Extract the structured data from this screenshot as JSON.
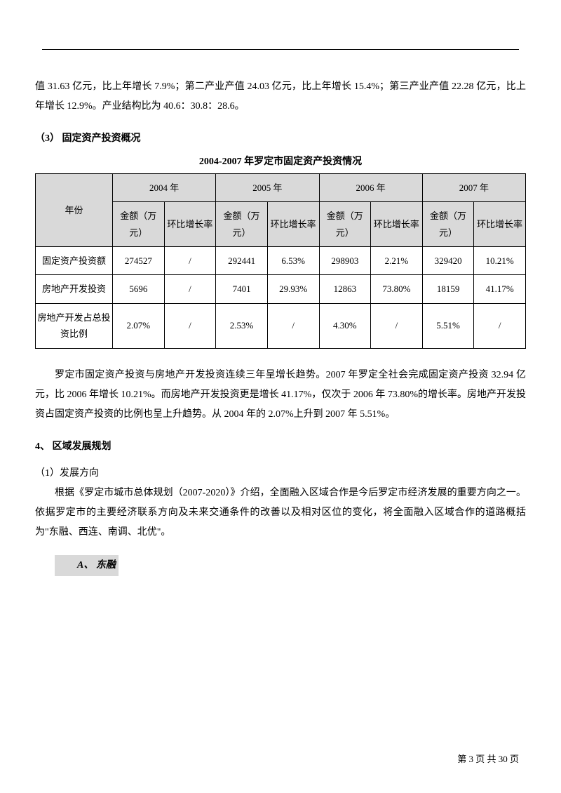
{
  "intro_para": "值 31.63 亿元，比上年增长 7.9%；第二产业产值 24.03 亿元，比上年增长 15.4%；第三产业产值 22.28 亿元，比上年增长 12.9%。产业结构比为 40.6：30.8：28.6。",
  "section3_head": "（3） 固定资产投资概况",
  "table_title": "2004-2007 年罗定市固定资产投资情况",
  "table": {
    "row_head": "年份",
    "years": [
      "2004 年",
      "2005 年",
      "2006 年",
      "2007 年"
    ],
    "sub_amount": "金额（万元）",
    "sub_rate": "环比增长率",
    "rows": [
      {
        "label": "固定资产投资额",
        "cells": [
          "274527",
          "/",
          "292441",
          "6.53%",
          "298903",
          "2.21%",
          "329420",
          "10.21%"
        ]
      },
      {
        "label": "房地产开发投资",
        "cells": [
          "5696",
          "/",
          "7401",
          "29.93%",
          "12863",
          "73.80%",
          "18159",
          "41.17%"
        ]
      },
      {
        "label": "房地产开发占总投资比例",
        "cells": [
          "2.07%",
          "/",
          "2.53%",
          "/",
          "4.30%",
          "/",
          "5.51%",
          "/"
        ]
      }
    ]
  },
  "analysis_para": "罗定市固定资产投资与房地产开发投资连续三年呈增长趋势。2007 年罗定全社会完成固定资产投资 32.94 亿元，比 2006 年增长 10.21%。而房地产开发投资更是增长 41.17%，仅次于 2006 年 73.80%的增长率。房地产开发投资占固定资产投资的比例也呈上升趋势。从 2004 年的 2.07%上升到 2007 年 5.51%。",
  "section4_head": "4、 区域发展规划",
  "sub1_head": "（1）发展方向",
  "plan_para": "根据《罗定市城市总体规划（2007-2020）》介绍，全面融入区域合作是今后罗定市经济发展的重要方向之一。依据罗定市的主要经济联系方向及未来交通条件的改善以及相对区位的变化，将全面融入区域合作的道路概括为\"东融、西连、南调、北优\"。",
  "item_a": "A、 东融",
  "footer": "第 3 页 共 30 页"
}
